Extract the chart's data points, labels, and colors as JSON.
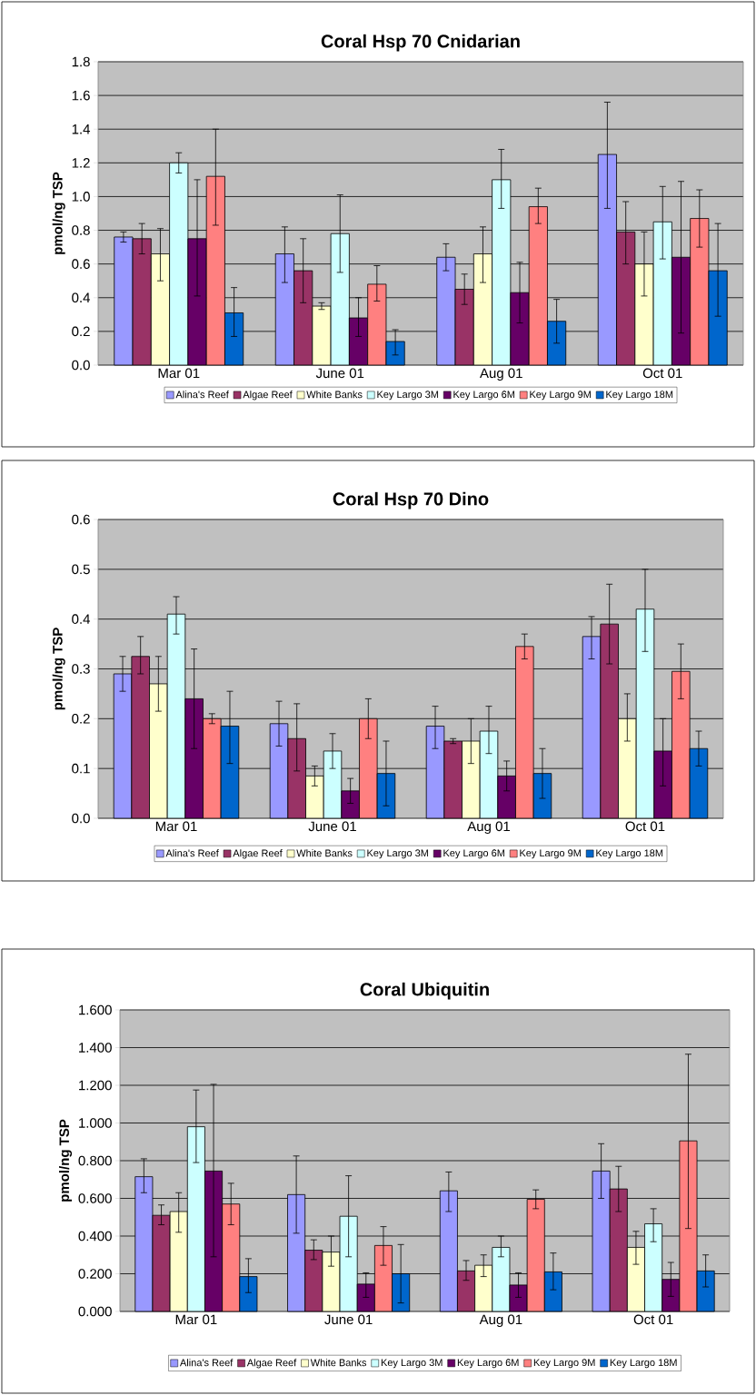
{
  "chart_data": [
    {
      "type": "bar",
      "title": "Coral Hsp 70 Cnidarian",
      "ylabel": "pmol/ng TSP",
      "categories": [
        "Mar 01",
        "June 01",
        "Aug 01",
        "Oct 01"
      ],
      "ylim": [
        0,
        1.8
      ],
      "yticks": [
        {
          "value": 0,
          "label": "0.0"
        },
        {
          "value": 0.2,
          "label": "0.2"
        },
        {
          "value": 0.4,
          "label": "0.4"
        },
        {
          "value": 0.6,
          "label": "0.6"
        },
        {
          "value": 0.8,
          "label": "0.8"
        },
        {
          "value": 1.0,
          "label": "1.0"
        },
        {
          "value": 1.2,
          "label": "1.2"
        },
        {
          "value": 1.4,
          "label": "1.4"
        },
        {
          "value": 1.6,
          "label": "1.6"
        },
        {
          "value": 1.8,
          "label": "1.8"
        }
      ],
      "grid": "y",
      "legend": "bottom",
      "series": [
        {
          "name": "Alina's Reef",
          "color": "#9999ff",
          "values": [
            0.76,
            0.66,
            0.64,
            1.25
          ],
          "errors": [
            [
              0.73,
              0.79
            ],
            [
              0.49,
              0.82
            ],
            [
              0.56,
              0.72
            ],
            [
              0.93,
              1.56
            ]
          ]
        },
        {
          "name": "Algae Reef",
          "color": "#993366",
          "values": [
            0.75,
            0.56,
            0.45,
            0.79
          ],
          "errors": [
            [
              0.66,
              0.84
            ],
            [
              0.37,
              0.75
            ],
            [
              0.36,
              0.54
            ],
            [
              0.6,
              0.97
            ]
          ]
        },
        {
          "name": "White Banks",
          "color": "#ffffcc",
          "values": [
            0.66,
            0.35,
            0.66,
            0.6
          ],
          "errors": [
            [
              0.5,
              0.81
            ],
            [
              0.33,
              0.37
            ],
            [
              0.49,
              0.82
            ],
            [
              0.41,
              0.79
            ]
          ]
        },
        {
          "name": "Key Largo 3M",
          "color": "#ccffff",
          "values": [
            1.2,
            0.78,
            1.1,
            0.85
          ],
          "errors": [
            [
              1.14,
              1.26
            ],
            [
              0.55,
              1.01
            ],
            [
              0.93,
              1.28
            ],
            [
              0.63,
              1.06
            ]
          ]
        },
        {
          "name": "Key Largo 6M",
          "color": "#660066",
          "values": [
            0.75,
            0.28,
            0.43,
            0.64
          ],
          "errors": [
            [
              0.41,
              1.1
            ],
            [
              0.17,
              0.4
            ],
            [
              0.25,
              0.61
            ],
            [
              0.19,
              1.09
            ]
          ]
        },
        {
          "name": "Key Largo 9M",
          "color": "#ff8080",
          "values": [
            1.12,
            0.48,
            0.94,
            0.87
          ],
          "errors": [
            [
              0.83,
              1.4
            ],
            [
              0.38,
              0.59
            ],
            [
              0.84,
              1.05
            ],
            [
              0.7,
              1.04
            ]
          ]
        },
        {
          "name": "Key Largo 18M",
          "color": "#0066cc",
          "values": [
            0.31,
            0.14,
            0.26,
            0.56
          ],
          "errors": [
            [
              0.17,
              0.46
            ],
            [
              0.06,
              0.21
            ],
            [
              0.13,
              0.39
            ],
            [
              0.29,
              0.84
            ]
          ]
        }
      ]
    },
    {
      "type": "bar",
      "title": "Coral Hsp 70 Dino",
      "ylabel": "pmol/ng TSP",
      "categories": [
        "Mar 01",
        "June 01",
        "Aug 01",
        "Oct 01"
      ],
      "ylim": [
        0,
        0.6
      ],
      "yticks": [
        {
          "value": 0,
          "label": "0.0"
        },
        {
          "value": 0.1,
          "label": "0.1"
        },
        {
          "value": 0.2,
          "label": "0.2"
        },
        {
          "value": 0.3,
          "label": "0.3"
        },
        {
          "value": 0.4,
          "label": "0.4"
        },
        {
          "value": 0.5,
          "label": "0.5"
        },
        {
          "value": 0.6,
          "label": "0.6"
        }
      ],
      "grid": "y",
      "legend": "bottom",
      "series": [
        {
          "name": "Alina's Reef",
          "color": "#9999ff",
          "values": [
            0.29,
            0.19,
            0.185,
            0.365
          ],
          "errors": [
            [
              0.255,
              0.325
            ],
            [
              0.145,
              0.235
            ],
            [
              0.14,
              0.225
            ],
            [
              0.32,
              0.405
            ]
          ]
        },
        {
          "name": "Algae Reef",
          "color": "#993366",
          "values": [
            0.325,
            0.16,
            0.155,
            0.39
          ],
          "errors": [
            [
              0.29,
              0.365
            ],
            [
              0.095,
              0.23
            ],
            [
              0.15,
              0.16
            ],
            [
              0.31,
              0.47
            ]
          ]
        },
        {
          "name": "White Banks",
          "color": "#ffffcc",
          "values": [
            0.27,
            0.085,
            0.155,
            0.2
          ],
          "errors": [
            [
              0.215,
              0.325
            ],
            [
              0.065,
              0.105
            ],
            [
              0.11,
              0.2
            ],
            [
              0.155,
              0.25
            ]
          ]
        },
        {
          "name": "Key Largo 3M",
          "color": "#ccffff",
          "values": [
            0.41,
            0.135,
            0.175,
            0.42
          ],
          "errors": [
            [
              0.37,
              0.445
            ],
            [
              0.1,
              0.17
            ],
            [
              0.13,
              0.225
            ],
            [
              0.335,
              0.5
            ]
          ]
        },
        {
          "name": "Key Largo 6M",
          "color": "#660066",
          "values": [
            0.24,
            0.055,
            0.085,
            0.135
          ],
          "errors": [
            [
              0.14,
              0.34
            ],
            [
              0.03,
              0.08
            ],
            [
              0.055,
              0.115
            ],
            [
              0.065,
              0.2
            ]
          ]
        },
        {
          "name": "Key Largo 9M",
          "color": "#ff8080",
          "values": [
            0.2,
            0.2,
            0.345,
            0.295
          ],
          "errors": [
            [
              0.19,
              0.21
            ],
            [
              0.16,
              0.24
            ],
            [
              0.32,
              0.37
            ],
            [
              0.24,
              0.35
            ]
          ]
        },
        {
          "name": "Key Largo 18M",
          "color": "#0066cc",
          "values": [
            0.185,
            0.09,
            0.09,
            0.14
          ],
          "errors": [
            [
              0.11,
              0.255
            ],
            [
              0.025,
              0.155
            ],
            [
              0.04,
              0.14
            ],
            [
              0.105,
              0.175
            ]
          ]
        }
      ]
    },
    {
      "type": "bar",
      "title": "Coral Ubiquitin",
      "ylabel": "pmol/ng TSP",
      "categories": [
        "Mar 01",
        "June 01",
        "Aug 01",
        "Oct 01"
      ],
      "ylim": [
        0,
        1.6
      ],
      "yticks": [
        {
          "value": 0,
          "label": "0.000"
        },
        {
          "value": 0.2,
          "label": "0.200"
        },
        {
          "value": 0.4,
          "label": "0.400"
        },
        {
          "value": 0.6,
          "label": "0.600"
        },
        {
          "value": 0.8,
          "label": "0.800"
        },
        {
          "value": 1.0,
          "label": "1.000"
        },
        {
          "value": 1.2,
          "label": "1.200"
        },
        {
          "value": 1.4,
          "label": "1.400"
        },
        {
          "value": 1.6,
          "label": "1.600"
        }
      ],
      "grid": "y",
      "legend": "bottom",
      "series": [
        {
          "name": "Alina's Reef",
          "color": "#9999ff",
          "values": [
            0.715,
            0.62,
            0.64,
            0.745
          ],
          "errors": [
            [
              0.63,
              0.81
            ],
            [
              0.415,
              0.825
            ],
            [
              0.53,
              0.74
            ],
            [
              0.6,
              0.89
            ]
          ]
        },
        {
          "name": "Algae Reef",
          "color": "#993366",
          "values": [
            0.51,
            0.325,
            0.215,
            0.65
          ],
          "errors": [
            [
              0.46,
              0.565
            ],
            [
              0.275,
              0.38
            ],
            [
              0.165,
              0.27
            ],
            [
              0.53,
              0.77
            ]
          ]
        },
        {
          "name": "White Banks",
          "color": "#ffffcc",
          "values": [
            0.53,
            0.315,
            0.245,
            0.34
          ],
          "errors": [
            [
              0.42,
              0.63
            ],
            [
              0.24,
              0.4
            ],
            [
              0.185,
              0.3
            ],
            [
              0.25,
              0.425
            ]
          ]
        },
        {
          "name": "Key Largo 3M",
          "color": "#ccffff",
          "values": [
            0.98,
            0.505,
            0.34,
            0.465
          ],
          "errors": [
            [
              0.79,
              1.175
            ],
            [
              0.29,
              0.72
            ],
            [
              0.29,
              0.4
            ],
            [
              0.37,
              0.545
            ]
          ]
        },
        {
          "name": "Key Largo 6M",
          "color": "#660066",
          "values": [
            0.745,
            0.145,
            0.14,
            0.17
          ],
          "errors": [
            [
              0.29,
              1.205
            ],
            [
              0.075,
              0.205
            ],
            [
              0.075,
              0.205
            ],
            [
              0.08,
              0.26
            ]
          ]
        },
        {
          "name": "Key Largo 9M",
          "color": "#ff8080",
          "values": [
            0.57,
            0.35,
            0.595,
            0.905
          ],
          "errors": [
            [
              0.46,
              0.68
            ],
            [
              0.245,
              0.45
            ],
            [
              0.545,
              0.645
            ],
            [
              0.44,
              1.365
            ]
          ]
        },
        {
          "name": "Key Largo 18M",
          "color": "#0066cc",
          "values": [
            0.185,
            0.2,
            0.21,
            0.215
          ],
          "errors": [
            [
              0.1,
              0.28
            ],
            [
              0.045,
              0.355
            ],
            [
              0.115,
              0.31
            ],
            [
              0.13,
              0.3
            ]
          ]
        }
      ]
    }
  ]
}
